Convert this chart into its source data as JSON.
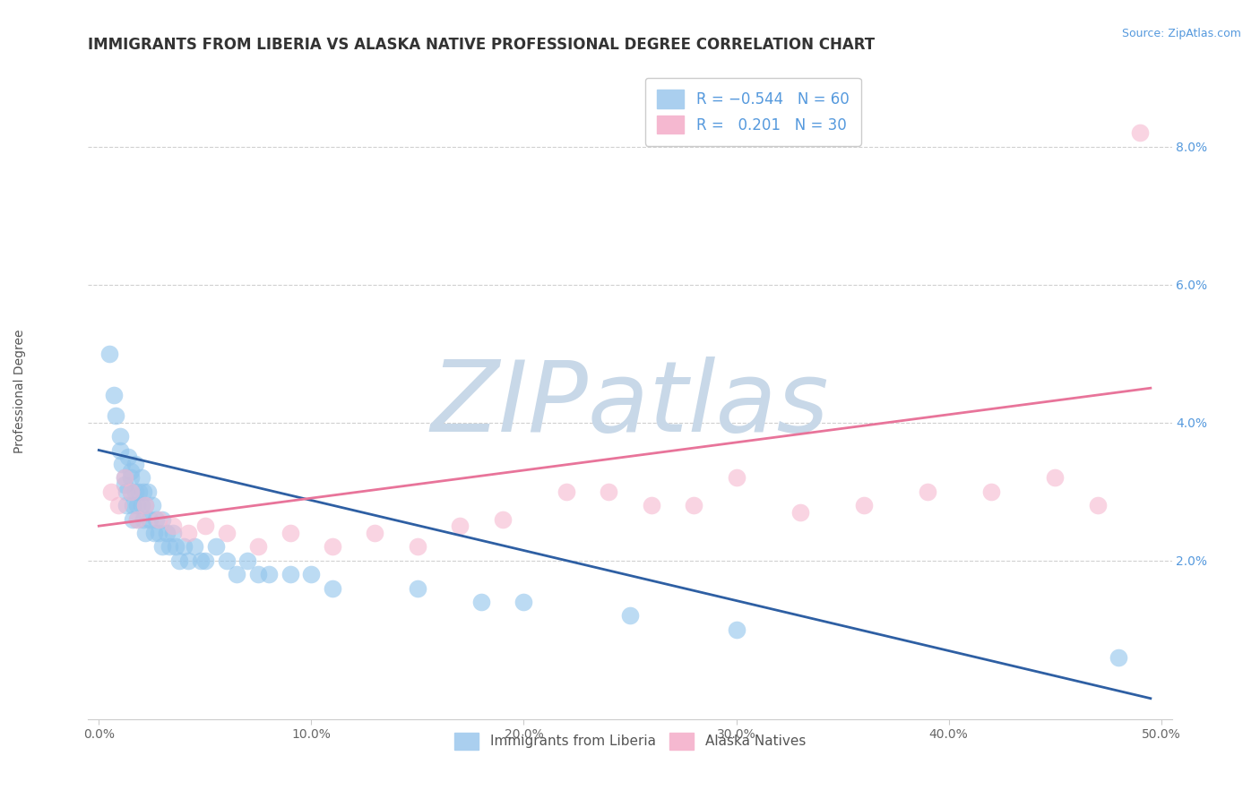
{
  "title": "IMMIGRANTS FROM LIBERIA VS ALASKA NATIVE PROFESSIONAL DEGREE CORRELATION CHART",
  "source_text": "Source: ZipAtlas.com",
  "ylabel": "Professional Degree",
  "xlim": [
    -0.005,
    0.505
  ],
  "ylim": [
    -0.003,
    0.092
  ],
  "xtick_labels": [
    "0.0%",
    "10.0%",
    "20.0%",
    "30.0%",
    "40.0%",
    "50.0%"
  ],
  "xtick_values": [
    0.0,
    0.1,
    0.2,
    0.3,
    0.4,
    0.5
  ],
  "ytick_labels": [
    "2.0%",
    "4.0%",
    "6.0%",
    "8.0%"
  ],
  "ytick_values": [
    0.02,
    0.04,
    0.06,
    0.08
  ],
  "blue_color": "#90c4ec",
  "pink_color": "#f5b8d0",
  "blue_line_color": "#2e5fa3",
  "pink_line_color": "#e8749a",
  "blue_trend_x": [
    0.0,
    0.495
  ],
  "blue_trend_y": [
    0.036,
    0.0
  ],
  "pink_trend_x": [
    0.0,
    0.495
  ],
  "pink_trend_y": [
    0.025,
    0.045
  ],
  "blue_x": [
    0.005,
    0.007,
    0.008,
    0.01,
    0.01,
    0.011,
    0.012,
    0.012,
    0.013,
    0.013,
    0.014,
    0.015,
    0.015,
    0.015,
    0.016,
    0.016,
    0.017,
    0.017,
    0.018,
    0.018,
    0.019,
    0.02,
    0.02,
    0.021,
    0.021,
    0.022,
    0.022,
    0.023,
    0.024,
    0.025,
    0.026,
    0.027,
    0.028,
    0.03,
    0.03,
    0.032,
    0.033,
    0.035,
    0.036,
    0.038,
    0.04,
    0.042,
    0.045,
    0.048,
    0.05,
    0.055,
    0.06,
    0.065,
    0.07,
    0.075,
    0.08,
    0.09,
    0.1,
    0.11,
    0.15,
    0.18,
    0.2,
    0.25,
    0.3,
    0.48
  ],
  "blue_y": [
    0.05,
    0.044,
    0.041,
    0.038,
    0.036,
    0.034,
    0.032,
    0.031,
    0.03,
    0.028,
    0.035,
    0.033,
    0.032,
    0.03,
    0.028,
    0.026,
    0.034,
    0.03,
    0.028,
    0.026,
    0.03,
    0.032,
    0.028,
    0.03,
    0.026,
    0.028,
    0.024,
    0.03,
    0.026,
    0.028,
    0.024,
    0.026,
    0.024,
    0.026,
    0.022,
    0.024,
    0.022,
    0.024,
    0.022,
    0.02,
    0.022,
    0.02,
    0.022,
    0.02,
    0.02,
    0.022,
    0.02,
    0.018,
    0.02,
    0.018,
    0.018,
    0.018,
    0.018,
    0.016,
    0.016,
    0.014,
    0.014,
    0.012,
    0.01,
    0.006
  ],
  "pink_x": [
    0.006,
    0.009,
    0.012,
    0.015,
    0.018,
    0.022,
    0.028,
    0.035,
    0.042,
    0.05,
    0.06,
    0.075,
    0.09,
    0.11,
    0.13,
    0.15,
    0.17,
    0.19,
    0.22,
    0.24,
    0.26,
    0.28,
    0.3,
    0.33,
    0.36,
    0.39,
    0.42,
    0.45,
    0.47,
    0.49
  ],
  "pink_y": [
    0.03,
    0.028,
    0.032,
    0.03,
    0.026,
    0.028,
    0.026,
    0.025,
    0.024,
    0.025,
    0.024,
    0.022,
    0.024,
    0.022,
    0.024,
    0.022,
    0.025,
    0.026,
    0.03,
    0.03,
    0.028,
    0.028,
    0.032,
    0.027,
    0.028,
    0.03,
    0.03,
    0.032,
    0.028,
    0.082
  ],
  "watermark": "ZIPatlas",
  "watermark_color": "#c8d8e8",
  "background_color": "#ffffff",
  "grid_color": "#d0d0d0",
  "title_fontsize": 12,
  "axis_label_fontsize": 10,
  "tick_fontsize": 10,
  "legend_fontsize": 12,
  "source_fontsize": 9
}
